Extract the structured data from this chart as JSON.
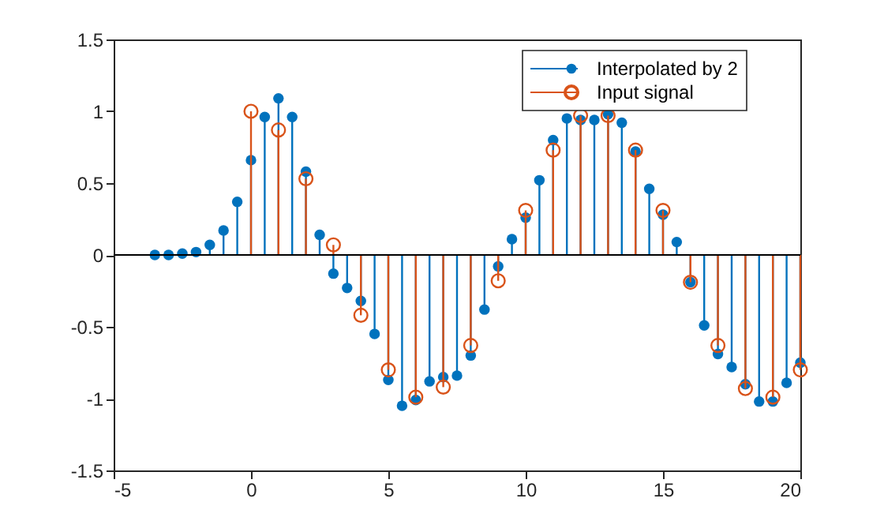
{
  "chart_data": {
    "type": "lollipop",
    "xlim": [
      -5,
      20
    ],
    "xticks": [
      -5,
      0,
      5,
      10,
      15,
      20
    ],
    "ylim": [
      -1.5,
      1.5
    ],
    "yticks": [
      -1.5,
      -1,
      -0.5,
      0,
      0.5,
      1,
      1.5
    ],
    "grid": false,
    "legend": "top right",
    "marker": "circle",
    "ref_lines": [
      {
        "axis": "y",
        "value": 0,
        "color": "#000000"
      }
    ],
    "series": [
      {
        "name": "Interpolated by 2",
        "color": "#0072bd",
        "x": [
          -3.5,
          -3,
          -2.5,
          -2,
          -1.5,
          -1,
          -0.5,
          0,
          0.5,
          1,
          1.5,
          2,
          2.5,
          3,
          3.5,
          4,
          4.5,
          5,
          5.5,
          6,
          6.5,
          7,
          7.5,
          8,
          8.5,
          9,
          9.5,
          10,
          10.5,
          11,
          11.5,
          12,
          12.5,
          13,
          13.5,
          14,
          14.5,
          15,
          15.5,
          16,
          16.5,
          17,
          17.5,
          18,
          18.5,
          19,
          19.5,
          20
        ],
        "values": [
          0,
          0,
          0.01,
          0.02,
          0.07,
          0.17,
          0.37,
          0.66,
          0.96,
          1.09,
          0.96,
          0.58,
          0.14,
          -0.13,
          -0.23,
          -0.32,
          -0.55,
          -0.87,
          -1.05,
          -1.01,
          -0.88,
          -0.85,
          -0.84,
          -0.7,
          -0.38,
          -0.08,
          0.11,
          0.26,
          0.52,
          0.8,
          0.95,
          0.94,
          0.94,
          0.98,
          0.92,
          0.72,
          0.46,
          0.28,
          0.09,
          -0.19,
          -0.49,
          -0.69,
          -0.78,
          -0.9,
          -1.02,
          -1.02,
          -0.89,
          -0.75
        ]
      },
      {
        "name": "Input signal",
        "color": "#d95319",
        "x": [
          0,
          1,
          2,
          3,
          4,
          5,
          6,
          7,
          8,
          9,
          10,
          11,
          12,
          13,
          14,
          15,
          16,
          17,
          18,
          19,
          20
        ],
        "values": [
          1,
          0.87,
          0.53,
          0.07,
          -0.42,
          -0.8,
          -0.99,
          -0.92,
          -0.63,
          -0.18,
          0.31,
          0.73,
          0.97,
          0.97,
          0.73,
          0.31,
          -0.19,
          -0.63,
          -0.93,
          -0.99,
          -0.8
        ]
      }
    ]
  }
}
